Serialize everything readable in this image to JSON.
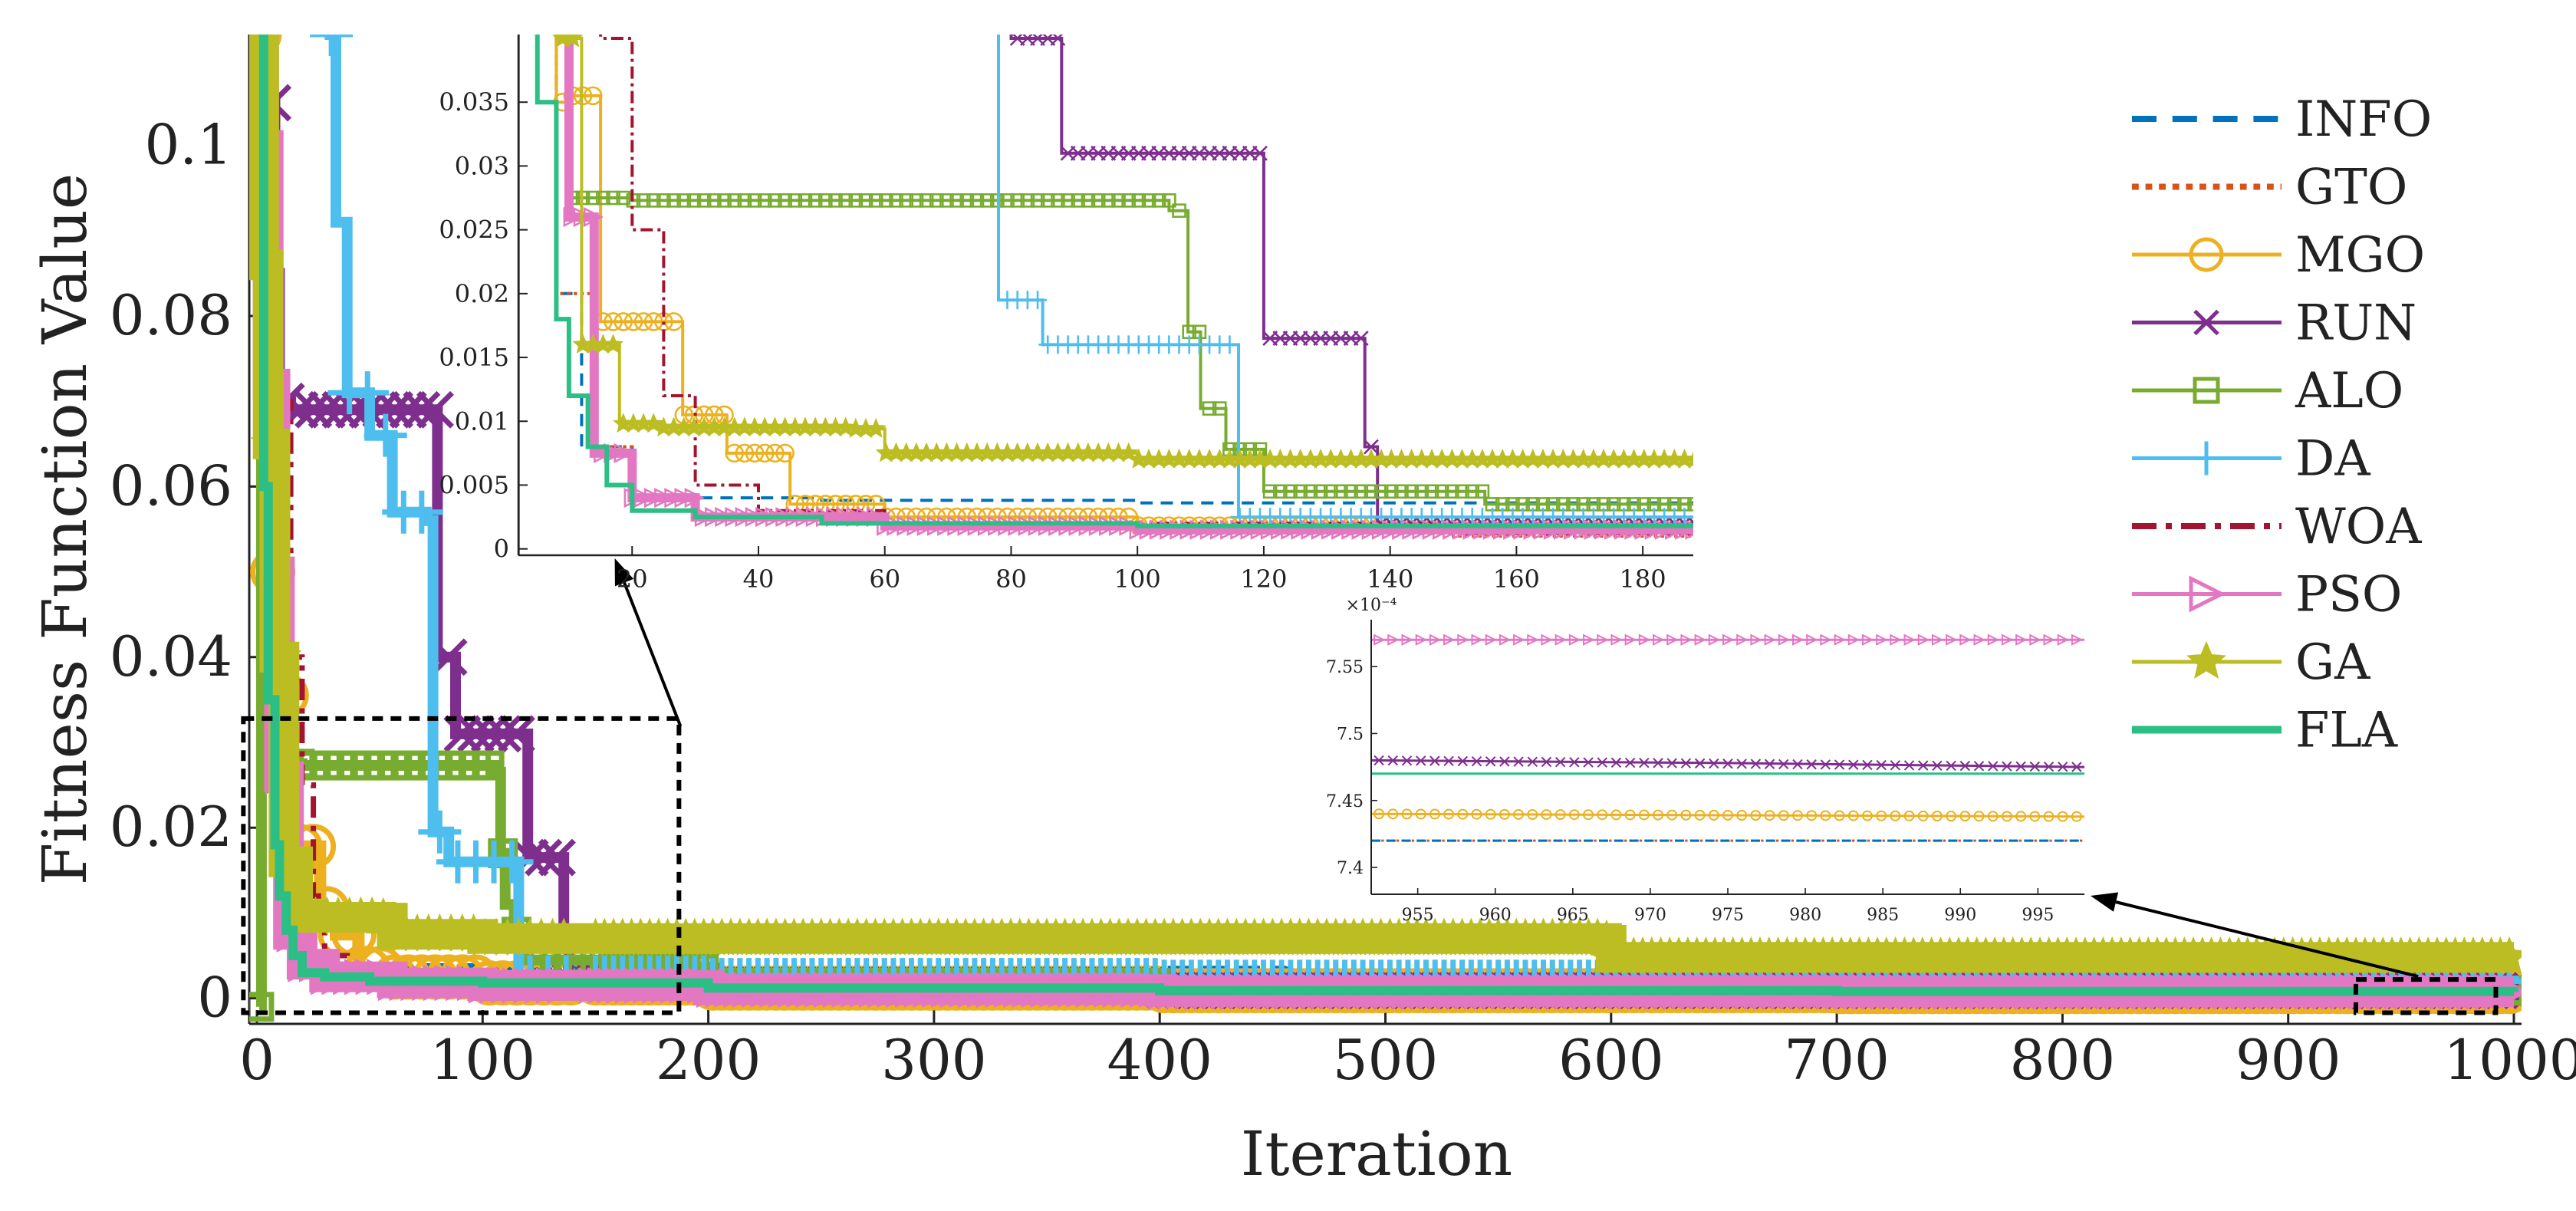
{
  "colors": {
    "INFO": "#0072BD",
    "GTO": "#D95319",
    "MGO": "#EDB120",
    "RUN": "#7E2F8E",
    "ALO": "#77AC30",
    "DA": "#4DBEEE",
    "WOA": "#A2142F",
    "PSO": "#E377C2",
    "GA": "#BCBD22",
    "FLA": "#2BBF85"
  },
  "chart_data": [
    {
      "type": "line",
      "id": "main",
      "title": "",
      "xlabel": "Iteration",
      "ylabel": "Fitness Function Value",
      "xlim": [
        0,
        1000
      ],
      "ylim": [
        -0.003,
        0.113
      ],
      "xticks": [
        0,
        100,
        200,
        300,
        400,
        500,
        600,
        700,
        800,
        900,
        1000
      ],
      "xtick_labels": [
        "0",
        "100",
        "200",
        "300",
        "400",
        "500",
        "600",
        "700",
        "800",
        "900",
        "1000"
      ],
      "yticks": [
        0,
        0.02,
        0.04,
        0.06,
        0.08,
        0.1
      ],
      "ytick_labels": [
        "0",
        "0.02",
        "0.04",
        "0.06",
        "0.08",
        "0.1"
      ],
      "legend": {
        "position": "right",
        "entries": [
          "INFO",
          "GTO",
          "MGO",
          "RUN",
          "ALO",
          "DA",
          "WOA",
          "PSO",
          "GA",
          "FLA"
        ]
      },
      "series": [
        {
          "name": "INFO",
          "style": "dashed",
          "marker": "none",
          "x": [
            1,
            3,
            5,
            8,
            12,
            20,
            50,
            100,
            200,
            455,
            456,
            1000
          ],
          "y": [
            0.113,
            0.09,
            0.05,
            0.02,
            0.008,
            0.004,
            0.0038,
            0.0036,
            0.0035,
            0.0034,
            0.0008,
            0.00075
          ]
        },
        {
          "name": "GTO",
          "style": "dotted",
          "marker": "none",
          "x": [
            1,
            4,
            8,
            14,
            20,
            30,
            60,
            150,
            300,
            1000
          ],
          "y": [
            0.113,
            0.07,
            0.02,
            0.008,
            0.004,
            0.0025,
            0.0018,
            0.001,
            0.0008,
            0.000742
          ]
        },
        {
          "name": "MGO",
          "style": "solid",
          "marker": "circle",
          "x": [
            1,
            3,
            5,
            8,
            10,
            15,
            22,
            28,
            35,
            45,
            60,
            100,
            200,
            400,
            700,
            1000
          ],
          "y": [
            0.113,
            0.056,
            0.05,
            0.035,
            0.0355,
            0.0178,
            0.0178,
            0.0105,
            0.0075,
            0.0035,
            0.0025,
            0.0018,
            0.0012,
            0.0009,
            0.0008,
            0.000744
          ]
        },
        {
          "name": "RUN",
          "style": "solid",
          "marker": "x",
          "x": [
            1,
            5,
            8,
            10,
            15,
            60,
            80,
            88,
            90,
            115,
            120,
            136,
            138,
            200,
            400,
            1000
          ],
          "y": [
            0.113,
            0.105,
            0.085,
            0.07,
            0.069,
            0.069,
            0.04,
            0.031,
            0.031,
            0.031,
            0.0165,
            0.008,
            0.002,
            0.0015,
            0.0009,
            0.000747
          ]
        },
        {
          "name": "ALO",
          "style": "solid",
          "marker": "square",
          "x": [
            1,
            2,
            4,
            6,
            10,
            15,
            20,
            50,
            105,
            108,
            110,
            114,
            120,
            127,
            155,
            200,
            400,
            1000
          ],
          "y": [
            -0.001,
            0.101,
            0.072,
            0.063,
            0.0275,
            0.0275,
            0.0273,
            0.0273,
            0.0265,
            0.017,
            0.011,
            0.0078,
            0.0045,
            0.0045,
            0.0035,
            0.0018,
            0.0009,
            0.0008
          ]
        },
        {
          "name": "DA",
          "style": "solid",
          "marker": "plus",
          "x": [
            30,
            35,
            40,
            50,
            60,
            75,
            78,
            85,
            115,
            116,
            200,
            400,
            1000
          ],
          "y": [
            0.113,
            0.091,
            0.071,
            0.066,
            0.057,
            0.056,
            0.0195,
            0.016,
            0.016,
            0.0025,
            0.0022,
            0.002,
            0.0018
          ]
        },
        {
          "name": "WOA",
          "style": "dashdot",
          "marker": "none",
          "x": [
            1,
            3,
            5,
            10,
            15,
            20,
            25,
            30,
            40,
            60,
            150,
            400,
            1000
          ],
          "y": [
            0.113,
            0.1,
            0.09,
            0.07,
            0.04,
            0.025,
            0.012,
            0.005,
            0.003,
            0.002,
            0.0012,
            0.001,
            0.0009
          ]
        },
        {
          "name": "PSO",
          "style": "solid",
          "marker": "triangle-right",
          "x": [
            1,
            3,
            5,
            8,
            10,
            14,
            20,
            30,
            60,
            100,
            200,
            400,
            700,
            1000
          ],
          "y": [
            0.113,
            0.1,
            0.072,
            0.05,
            0.026,
            0.0075,
            0.004,
            0.0025,
            0.0018,
            0.0015,
            0.001,
            0.0008,
            0.00076,
            0.000757
          ]
        },
        {
          "name": "GA",
          "style": "solid",
          "marker": "star",
          "x": [
            1,
            3,
            5,
            8,
            12,
            18,
            25,
            55,
            60,
            100,
            300,
            598,
            600,
            1000
          ],
          "y": [
            0.113,
            0.086,
            0.065,
            0.04,
            0.016,
            0.0098,
            0.0095,
            0.0094,
            0.0075,
            0.007,
            0.007,
            0.0068,
            0.0048,
            0.0048
          ]
        },
        {
          "name": "FLA",
          "style": "solid",
          "marker": "none",
          "x": [
            1,
            3,
            5,
            8,
            10,
            13,
            16,
            20,
            30,
            50,
            100,
            200,
            400,
            700,
            1000
          ],
          "y": [
            0.113,
            0.06,
            0.035,
            0.018,
            0.012,
            0.008,
            0.005,
            0.003,
            0.0025,
            0.002,
            0.0018,
            0.0012,
            0.0009,
            0.0008,
            0.000747
          ]
        }
      ]
    },
    {
      "type": "line",
      "id": "inset-early",
      "xlim": [
        2,
        188
      ],
      "ylim": [
        -0.0005,
        0.0403
      ],
      "xticks": [
        20,
        40,
        60,
        80,
        100,
        120,
        140,
        160,
        180
      ],
      "xtick_labels": [
        "20",
        "40",
        "60",
        "80",
        "100",
        "120",
        "140",
        "160",
        "180"
      ],
      "yticks": [
        0,
        0.005,
        0.01,
        0.015,
        0.02,
        0.025,
        0.03,
        0.035
      ],
      "ytick_labels": [
        "0",
        "0.005",
        "0.01",
        "0.015",
        "0.02",
        "0.025",
        "0.03",
        "0.035"
      ]
    },
    {
      "type": "line",
      "id": "inset-late",
      "xlim": [
        952,
        998
      ],
      "ylim": [
        7.38,
        7.585
      ],
      "yscale_label": "×10⁻⁴",
      "xticks": [
        955,
        960,
        965,
        970,
        975,
        980,
        985,
        990,
        995
      ],
      "xtick_labels": [
        "955",
        "960",
        "965",
        "970",
        "975",
        "980",
        "985",
        "990",
        "995"
      ],
      "yticks": [
        7.4,
        7.45,
        7.5,
        7.55
      ],
      "ytick_labels": [
        "7.4",
        "7.45",
        "7.5",
        "7.55"
      ],
      "series": [
        {
          "name": "PSO",
          "marker": "triangle-right",
          "x": [
            952,
            998
          ],
          "y": [
            7.57,
            7.57
          ]
        },
        {
          "name": "RUN",
          "marker": "x",
          "x": [
            952,
            975,
            998
          ],
          "y": [
            7.48,
            7.478,
            7.475
          ]
        },
        {
          "name": "FLA",
          "marker": "none",
          "x": [
            952,
            998
          ],
          "y": [
            7.47,
            7.47
          ]
        },
        {
          "name": "MGO",
          "marker": "circle",
          "x": [
            952,
            998
          ],
          "y": [
            7.44,
            7.438
          ]
        },
        {
          "name": "GTO",
          "marker": "none",
          "style": "dotted",
          "x": [
            952,
            998
          ],
          "y": [
            7.42,
            7.42
          ]
        },
        {
          "name": "INFO",
          "marker": "none",
          "style": "dashed",
          "x": [
            952,
            998
          ],
          "y": [
            7.42,
            7.42
          ]
        }
      ]
    }
  ]
}
